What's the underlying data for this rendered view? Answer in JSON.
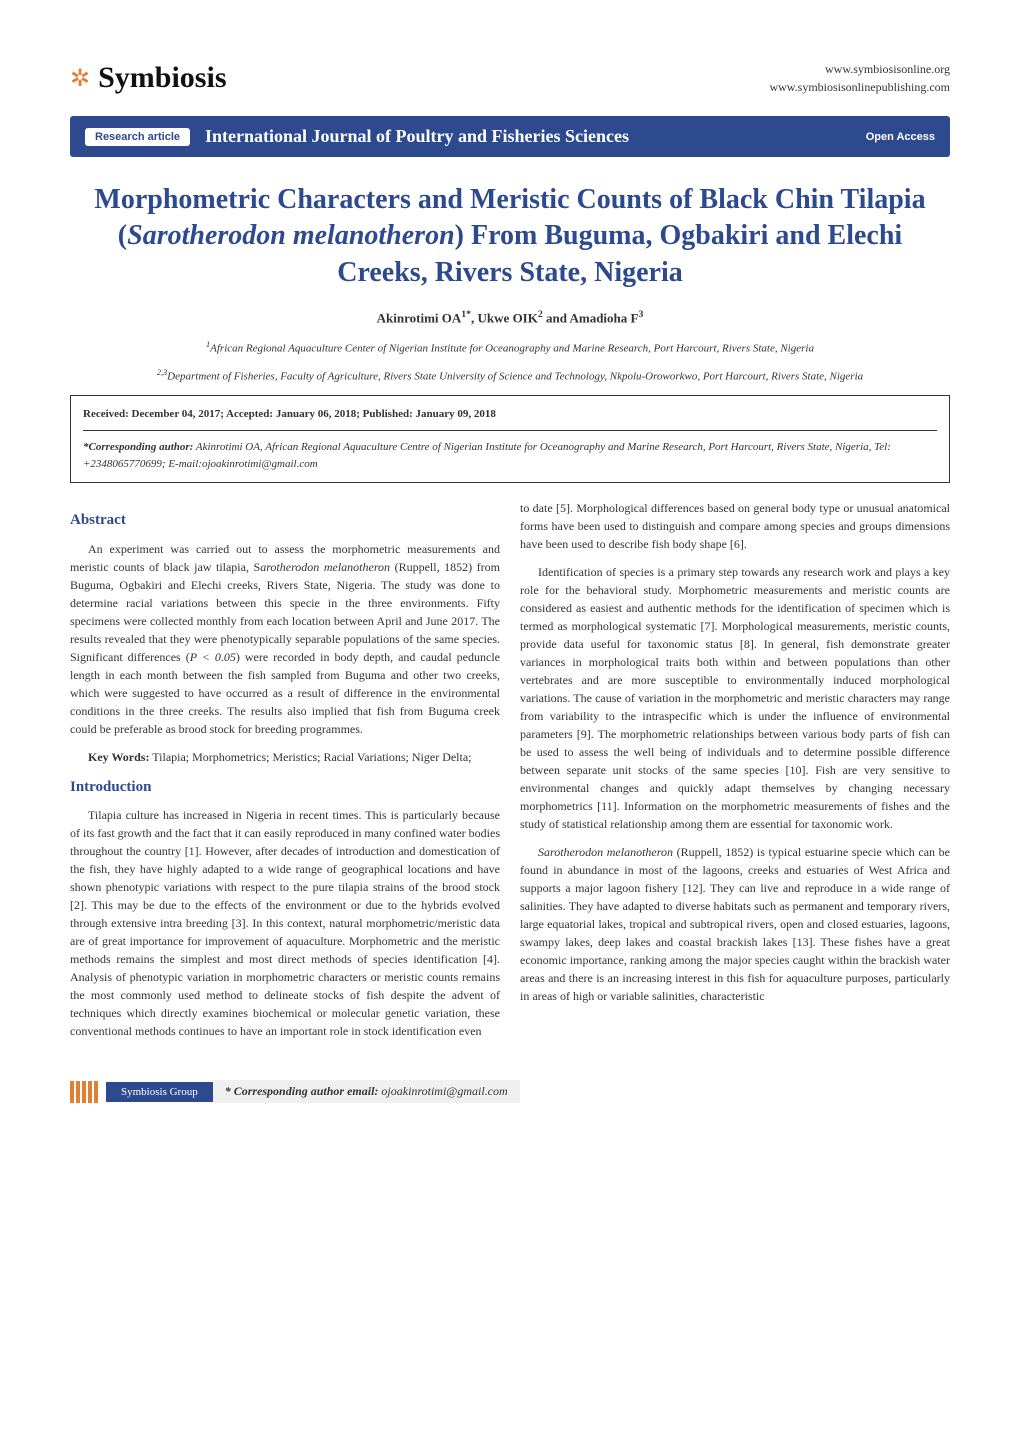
{
  "header": {
    "logo_text": "Symbiosis",
    "link1": "www.symbiosisonline.org",
    "link2": "www.symbiosisonlinepublishing.com"
  },
  "banner": {
    "badge": "Research article",
    "journal": "International Journal of Poultry and Fisheries Sciences",
    "access": "Open Access"
  },
  "article": {
    "title_html": "Morphometric Characters and Meristic Counts of Black Chin Tilapia (<span class=\"italic\">Sarotherodon melanotheron</span>) From Buguma, Ogbakiri and Elechi Creeks, Rivers State, Nigeria",
    "authors_html": "Akinrotimi OA<sup>1*</sup>, Ukwe OIK<sup>2</sup> and Amadioha F<sup>3</sup>",
    "affiliation1_html": "<sup>1</sup>African Regional Aquaculture Center of Nigerian Institute for Oceanography and Marine Research, Port Harcourt, Rivers State, Nigeria",
    "affiliation2_html": "<sup>2,3</sup>Department of Fisheries, Faculty of Agriculture, Rivers State University of Science and Technology, Nkpolu-Oroworkwo, Port Harcourt, Rivers State, Nigeria"
  },
  "infobox": {
    "dates": "Received: December 04, 2017; Accepted: January 06, 2018; Published: January 09, 2018",
    "corresponding_label": "*Corresponding author:",
    "corresponding_text": " Akinrotimi OA, African Regional Aquaculture Centre of Nigerian Institute for Oceanography and Marine Research, Port Harcourt, Rivers State, Nigeria, Tel: +2348065770699;  E-mail:ojoakinrotimi@gmail.com"
  },
  "abstract": {
    "heading": "Abstract",
    "body_html": "An experiment was carried out to assess the morphometric measurements and meristic counts of black jaw tilapia, S<span class=\"italic\">arotherodon melanotheron</span> (Ruppell, 1852) from Buguma, Ogbakiri and Elechi creeks, Rivers State, Nigeria. The study was done to determine racial variations between this specie in the three environments. Fifty specimens were collected monthly from each location between April and June 2017. The results revealed that they were phenotypically separable populations of the same species.  Significant differences (<span class=\"italic\">P &lt; 0.05</span>) were recorded in body depth, and caudal peduncle length in each month between the fish sampled from Buguma and other two creeks, which were suggested to have occurred as a result of difference in the environmental conditions in the three creeks. The results also implied that fish from Buguma creek could be preferable as brood stock for breeding programmes.",
    "keywords_label": "Key Words:",
    "keywords_text": " Tilapia; Morphometrics; Meristics; Racial Variations; Niger Delta;"
  },
  "introduction": {
    "heading": "Introduction",
    "para1": "Tilapia culture has increased in Nigeria in recent times. This is particularly because of its fast growth and the fact that it can easily reproduced in many confined water bodies throughout the country [1]. However, after decades of introduction and domestication of the fish, they have highly adapted to a wide range of geographical locations and have shown phenotypic variations with respect to the pure tilapia strains of the brood stock [2]. This may be due to the effects of the environment or due to the hybrids evolved through extensive intra breeding [3]. In this context, natural morphometric/meristic data are of great importance for improvement of aquaculture. Morphometric and the meristic methods remains the simplest and most direct methods of species identification [4]. Analysis of phenotypic variation in morphometric characters or meristic counts remains the most commonly used method to delineate stocks of fish despite the advent of techniques which directly examines biochemical or molecular genetic variation, these conventional methods continues to have an important role in stock identification even",
    "para2": "to date [5]. Morphological differences based on general body type or unusual anatomical forms have been used to distinguish and compare among species and groups dimensions have been used to describe fish body shape [6].",
    "para3": "Identification of species is a primary step towards any research work and plays a key role for the behavioral study. Morphometric measurements and meristic counts are considered as easiest and authentic methods for the identification of specimen which is termed as morphological systematic [7].  Morphological measurements, meristic counts, provide data useful for taxonomic status [8]. In general, fish demonstrate greater variances in morphological traits both within and between populations than other vertebrates and are more susceptible to environmentally induced morphological variations. The cause of variation in the morphometric and meristic characters may range from variability to the intraspecific which is under the influence of environmental parameters [9]. The morphometric relationships between various body parts of fish can be used to assess the well being of individuals and to determine possible difference between separate unit stocks of the same species [10]. Fish are very sensitive to environmental changes and quickly adapt themselves by changing necessary morphometrics [11]. Information on the morphometric measurements of fishes and the study of statistical relationship among them are essential for taxonomic work.",
    "para4_html": "<span class=\"italic\">Sarotherodon melanotheron</span> (Ruppell, 1852) is typical estuarine specie which can be found in abundance in most of the lagoons, creeks and estuaries of West Africa and supports a major lagoon fishery [12]. They can live and reproduce in a wide range of salinities. They have adapted to diverse habitats such as permanent and temporary rivers, large equatorial lakes, tropical and subtropical rivers, open and closed estuaries, lagoons, swampy lakes, deep lakes and coastal brackish lakes [13]. These fishes have a great economic importance, ranking among the major species caught within the brackish water areas and there is an increasing interest in this fish for aquaculture purposes, particularly in areas of high or variable salinities, characteristic"
  },
  "footer": {
    "group": "Symbiosis Group",
    "email_label": "* Corresponding author email:",
    "email": " ojoakinrotimi@gmail.com"
  },
  "colors": {
    "primary_blue": "#2e4a8f",
    "accent_orange": "#e08030",
    "text": "#333333",
    "light_gray": "#f0f0f0",
    "white": "#ffffff"
  },
  "typography": {
    "title_fontsize": 28,
    "section_heading_fontsize": 15,
    "body_fontsize": 12,
    "journal_fontsize": 18
  }
}
